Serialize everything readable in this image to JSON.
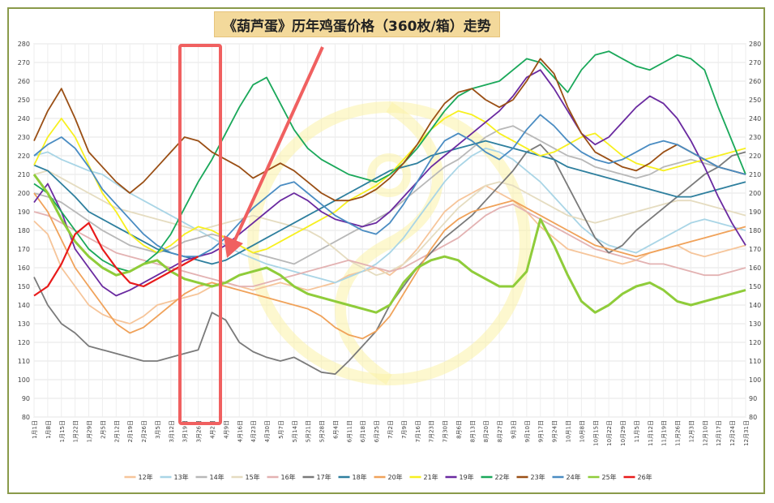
{
  "chart_data": {
    "type": "line",
    "title": "《葫芦蛋》历年鸡蛋价格（360枚/箱）走势",
    "ylim": [
      80,
      280
    ],
    "yticks": [
      80,
      90,
      100,
      110,
      120,
      130,
      140,
      150,
      160,
      170,
      180,
      190,
      200,
      210,
      220,
      230,
      240,
      250,
      260,
      270,
      280
    ],
    "x_labels": [
      "1月1日",
      "1月8日",
      "1月15日",
      "1月22日",
      "1月29日",
      "2月5日",
      "2月12日",
      "2月19日",
      "2月26日",
      "3月5日",
      "3月12日",
      "3月19日",
      "3月26日",
      "4月2日",
      "4月9日",
      "4月16日",
      "4月23日",
      "4月30日",
      "5月7日",
      "5月14日",
      "5月21日",
      "5月28日",
      "6月4日",
      "6月11日",
      "6月18日",
      "6月25日",
      "7月2日",
      "7月9日",
      "7月16日",
      "7月23日",
      "7月30日",
      "8月6日",
      "8月13日",
      "8月20日",
      "8月27日",
      "9月3日",
      "9月10日",
      "9月17日",
      "9月24日",
      "10月1日",
      "10月8日",
      "10月15日",
      "10月22日",
      "10月29日",
      "11月5日",
      "11月12日",
      "11月19日",
      "11月26日",
      "12月3日",
      "12月10日",
      "12月17日",
      "12月24日",
      "12月31日"
    ],
    "grid": true,
    "legend_position": "bottom",
    "series": [
      {
        "name": "12年",
        "color": "#f6c59a",
        "values": [
          185,
          178,
          160,
          150,
          140,
          135,
          132,
          130,
          134,
          140,
          142,
          144,
          146,
          150,
          152,
          150,
          148,
          150,
          152,
          150,
          148,
          150,
          152,
          156,
          158,
          160,
          156,
          162,
          170,
          180,
          190,
          196,
          200,
          204,
          200,
          196,
          190,
          182,
          176,
          170,
          168,
          166,
          164,
          162,
          164,
          168,
          170,
          172,
          168,
          166,
          168,
          170,
          172
        ]
      },
      {
        "name": "13年",
        "color": "#a9d5e6",
        "values": [
          220,
          222,
          218,
          215,
          212,
          210,
          205,
          200,
          196,
          192,
          188,
          184,
          180,
          176,
          172,
          168,
          165,
          162,
          160,
          158,
          156,
          154,
          152,
          155,
          158,
          162,
          168,
          176,
          186,
          196,
          206,
          214,
          220,
          224,
          222,
          218,
          212,
          206,
          198,
          190,
          182,
          176,
          172,
          170,
          168,
          172,
          176,
          180,
          184,
          186,
          184,
          182,
          180
        ]
      },
      {
        "name": "14年",
        "color": "#b8b8b8",
        "values": [
          200,
          198,
          195,
          190,
          185,
          180,
          176,
          172,
          170,
          168,
          170,
          174,
          176,
          178,
          176,
          172,
          168,
          166,
          164,
          162,
          166,
          170,
          174,
          178,
          182,
          186,
          190,
          196,
          202,
          208,
          214,
          218,
          224,
          230,
          234,
          236,
          232,
          228,
          224,
          220,
          218,
          214,
          212,
          210,
          208,
          210,
          214,
          216,
          218,
          216,
          214,
          212,
          210
        ]
      },
      {
        "name": "15年",
        "color": "#e5dcc0",
        "values": [
          210,
          212,
          208,
          204,
          200,
          196,
          192,
          190,
          188,
          186,
          184,
          182,
          180,
          182,
          184,
          186,
          188,
          186,
          184,
          182,
          180,
          176,
          170,
          164,
          160,
          156,
          158,
          162,
          168,
          176,
          184,
          192,
          198,
          204,
          206,
          204,
          200,
          196,
          192,
          188,
          186,
          184,
          186,
          188,
          190,
          192,
          194,
          196,
          196,
          194,
          192,
          190,
          188
        ]
      },
      {
        "name": "16年",
        "color": "#e3b2b2",
        "values": [
          190,
          188,
          184,
          180,
          176,
          172,
          168,
          166,
          164,
          162,
          160,
          158,
          156,
          154,
          152,
          150,
          150,
          152,
          154,
          156,
          158,
          160,
          162,
          164,
          162,
          160,
          158,
          160,
          164,
          168,
          172,
          176,
          182,
          188,
          192,
          194,
          190,
          186,
          182,
          178,
          174,
          170,
          168,
          166,
          164,
          162,
          162,
          160,
          158,
          156,
          156,
          158,
          160
        ]
      },
      {
        "name": "17年",
        "color": "#7a7a7a",
        "values": [
          155,
          140,
          130,
          125,
          118,
          116,
          114,
          112,
          110,
          110,
          112,
          114,
          116,
          136,
          132,
          120,
          115,
          112,
          110,
          112,
          108,
          104,
          103,
          110,
          118,
          126,
          140,
          150,
          160,
          168,
          176,
          182,
          188,
          196,
          204,
          212,
          222,
          226,
          218,
          204,
          190,
          176,
          168,
          172,
          180,
          186,
          192,
          198,
          204,
          210,
          214,
          220,
          222
        ]
      },
      {
        "name": "18年",
        "color": "#2e7f9e",
        "values": [
          215,
          212,
          205,
          198,
          190,
          186,
          182,
          178,
          174,
          170,
          168,
          166,
          164,
          162,
          164,
          168,
          172,
          176,
          180,
          184,
          188,
          192,
          196,
          200,
          204,
          208,
          212,
          214,
          216,
          220,
          222,
          224,
          226,
          228,
          226,
          224,
          222,
          220,
          218,
          214,
          212,
          210,
          208,
          206,
          204,
          202,
          200,
          198,
          198,
          200,
          202,
          204,
          206
        ]
      },
      {
        "name": "20年",
        "color": "#f0a25a",
        "values": [
          200,
          190,
          175,
          160,
          150,
          140,
          130,
          125,
          128,
          134,
          140,
          146,
          150,
          152,
          150,
          148,
          146,
          144,
          142,
          140,
          138,
          134,
          128,
          124,
          122,
          126,
          134,
          146,
          158,
          170,
          180,
          186,
          190,
          192,
          194,
          196,
          192,
          188,
          184,
          180,
          176,
          172,
          170,
          168,
          166,
          168,
          170,
          172,
          174,
          176,
          178,
          180,
          182
        ]
      },
      {
        "name": "21年",
        "color": "#f7f020",
        "values": [
          215,
          230,
          240,
          230,
          215,
          200,
          190,
          178,
          172,
          168,
          172,
          178,
          182,
          180,
          176,
          172,
          168,
          170,
          174,
          178,
          182,
          186,
          190,
          196,
          200,
          204,
          210,
          218,
          226,
          234,
          240,
          244,
          242,
          238,
          232,
          228,
          224,
          220,
          222,
          226,
          230,
          232,
          226,
          220,
          216,
          214,
          212,
          214,
          216,
          218,
          220,
          222,
          224
        ]
      },
      {
        "name": "19年",
        "color": "#6a2aa0",
        "values": [
          195,
          205,
          190,
          170,
          160,
          150,
          145,
          148,
          152,
          156,
          160,
          164,
          166,
          168,
          172,
          178,
          184,
          190,
          196,
          200,
          196,
          190,
          186,
          184,
          182,
          184,
          190,
          198,
          206,
          214,
          220,
          226,
          232,
          238,
          244,
          252,
          262,
          266,
          256,
          244,
          232,
          226,
          230,
          238,
          246,
          252,
          248,
          240,
          228,
          214,
          198,
          184,
          172
        ]
      },
      {
        "name": "22年",
        "color": "#1aa85a",
        "values": [
          205,
          200,
          190,
          180,
          170,
          164,
          160,
          158,
          162,
          168,
          178,
          192,
          206,
          218,
          232,
          246,
          258,
          262,
          248,
          234,
          224,
          218,
          214,
          210,
          208,
          206,
          210,
          216,
          224,
          234,
          244,
          252,
          256,
          258,
          260,
          266,
          272,
          270,
          262,
          254,
          266,
          274,
          276,
          272,
          268,
          266,
          270,
          274,
          272,
          266,
          246,
          228,
          210
        ]
      },
      {
        "name": "23年",
        "color": "#9a4f15",
        "values": [
          228,
          244,
          256,
          240,
          222,
          214,
          206,
          200,
          206,
          214,
          222,
          230,
          228,
          222,
          218,
          214,
          208,
          212,
          216,
          212,
          206,
          200,
          196,
          196,
          198,
          202,
          208,
          216,
          226,
          238,
          248,
          254,
          256,
          250,
          246,
          250,
          260,
          272,
          264,
          246,
          232,
          222,
          218,
          214,
          212,
          216,
          222,
          226,
          222,
          218,
          214,
          212,
          210
        ]
      },
      {
        "name": "24年",
        "color": "#4a8cc2",
        "values": [
          220,
          226,
          230,
          224,
          214,
          202,
          194,
          186,
          178,
          172,
          168,
          166,
          166,
          170,
          176,
          184,
          192,
          198,
          204,
          206,
          200,
          194,
          188,
          184,
          180,
          178,
          184,
          194,
          206,
          218,
          228,
          232,
          228,
          222,
          218,
          224,
          234,
          242,
          236,
          228,
          222,
          218,
          216,
          218,
          222,
          226,
          228,
          226,
          222,
          218,
          214,
          212,
          210
        ]
      },
      {
        "name": "25年",
        "color": "#8fcc3a",
        "values": [
          210,
          200,
          186,
          174,
          166,
          160,
          156,
          158,
          162,
          164,
          158,
          154,
          152,
          150,
          152,
          156,
          158,
          160,
          156,
          150,
          146,
          144,
          142,
          140,
          138,
          136,
          140,
          152,
          160,
          164,
          166,
          164,
          158,
          154,
          150,
          150,
          158,
          186,
          172,
          156,
          142,
          136,
          140,
          146,
          150,
          152,
          148,
          142,
          140,
          142,
          144,
          146,
          148
        ]
      },
      {
        "name": "26年",
        "color": "#e81b1b",
        "values": [
          145,
          150,
          162,
          178,
          184,
          170,
          160,
          152,
          150,
          154,
          158,
          162,
          166
        ]
      }
    ]
  }
}
